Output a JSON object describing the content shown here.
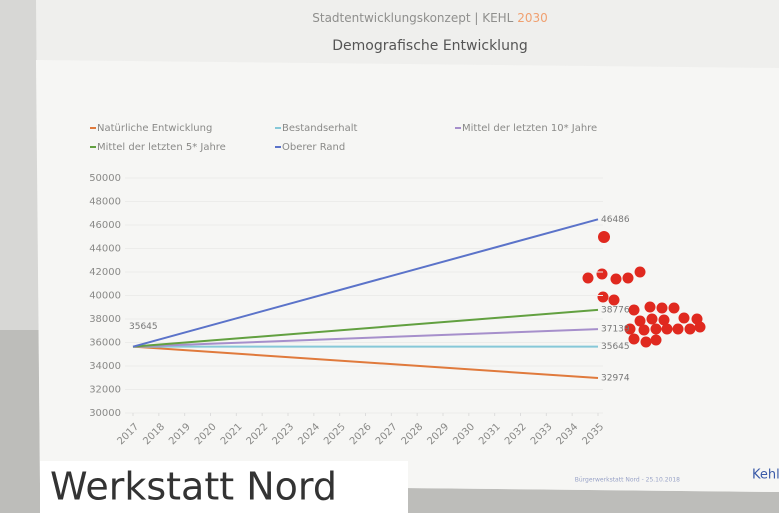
{
  "chart_data": {
    "type": "line",
    "header": "Stadtentwicklungskonzept | KEHL",
    "header_year": "2030",
    "title": "Demografische Entwicklung",
    "x": [
      2017,
      2035
    ],
    "xlim": [
      2017,
      2035
    ],
    "xticks": [
      2017,
      2018,
      2019,
      2020,
      2021,
      2022,
      2023,
      2024,
      2025,
      2026,
      2027,
      2028,
      2029,
      2030,
      2031,
      2032,
      2033,
      2034,
      2035
    ],
    "ylim": [
      30000,
      50000
    ],
    "yticks": [
      30000,
      32000,
      34000,
      36000,
      38000,
      40000,
      42000,
      44000,
      46000,
      48000,
      50000
    ],
    "series": [
      {
        "name": "Natürliche Entwicklung",
        "color": "#e07a3c",
        "values": [
          35645,
          32974
        ]
      },
      {
        "name": "Bestandserhalt",
        "color": "#86c8d8",
        "values": [
          35645,
          35645
        ]
      },
      {
        "name": "Mittel der letzten 10* Jahre",
        "color": "#a68fcb",
        "values": [
          35645,
          37139
        ]
      },
      {
        "name": "Mittel der letzten 5* Jahre",
        "color": "#62a040",
        "values": [
          35645,
          38776
        ]
      },
      {
        "name": "Oberer Rand",
        "color": "#5b73c9",
        "values": [
          35645,
          46486
        ]
      }
    ]
  },
  "caption": "Werkstatt Nord",
  "footer": "Bürgerwerkstatt Nord - 25.10.2018",
  "logo": "Kehl"
}
